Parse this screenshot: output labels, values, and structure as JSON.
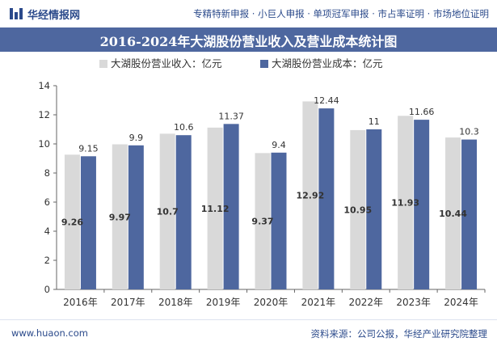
{
  "header": {
    "brand": "华经情报网",
    "tags": "专精特新申报 · 小巨人申报 · 单项冠军申报 · 市占率证明 · 市场地位证明"
  },
  "chart_data": {
    "type": "bar",
    "title": "2016-2024年大湖股份营业收入及营业成本统计图",
    "categories": [
      "2016年",
      "2017年",
      "2018年",
      "2019年",
      "2020年",
      "2021年",
      "2022年",
      "2023年",
      "2024年"
    ],
    "series": [
      {
        "name": "大湖股份营业收入：亿元",
        "values": [
          9.26,
          9.97,
          10.7,
          11.12,
          9.37,
          12.92,
          10.95,
          11.93,
          10.44
        ],
        "color": "#d9d9d9"
      },
      {
        "name": "大湖股份营业成本：亿元",
        "values": [
          9.15,
          9.9,
          10.6,
          11.37,
          9.4,
          12.44,
          11,
          11.66,
          10.3
        ],
        "color": "#4e679f"
      }
    ],
    "ylim": [
      0,
      14
    ],
    "yticks": [
      0,
      2,
      4,
      6,
      8,
      10,
      12,
      14
    ],
    "grid": false,
    "legend": "top-center"
  },
  "footer": {
    "url": "www.huaon.com",
    "source": "资料来源：公司公报，华经产业研究院整理"
  }
}
